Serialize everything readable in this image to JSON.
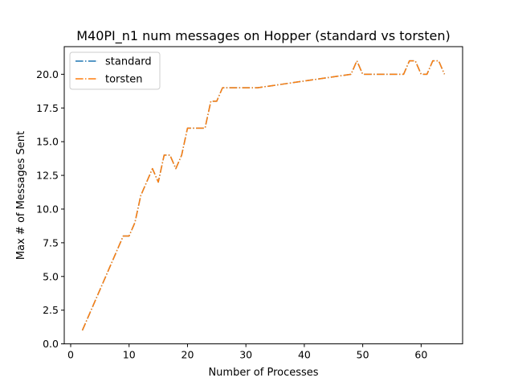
{
  "chart_data": {
    "type": "line",
    "title": "M40PI_n1 num messages on Hopper (standard vs torsten)",
    "xlabel": "Number of Processes",
    "ylabel": "Max # of Messages Sent",
    "xlim": [
      -1.1,
      67.1
    ],
    "ylim": [
      0,
      22.05
    ],
    "xticks": [
      0,
      10,
      20,
      30,
      40,
      50,
      60
    ],
    "yticks": [
      0.0,
      2.5,
      5.0,
      7.5,
      10.0,
      12.5,
      15.0,
      17.5,
      20.0
    ],
    "ytick_labels": [
      "0.0",
      "2.5",
      "5.0",
      "7.5",
      "10.0",
      "12.5",
      "15.0",
      "17.5",
      "20.0"
    ],
    "grid": false,
    "legend_position": "top-left",
    "x": [
      2,
      3,
      4,
      5,
      6,
      7,
      8,
      9,
      10,
      11,
      12,
      13,
      14,
      15,
      16,
      17,
      18,
      19,
      20,
      21,
      22,
      23,
      24,
      25,
      26,
      32,
      48,
      49,
      50,
      56,
      57,
      58,
      59,
      60,
      61,
      62,
      63,
      64
    ],
    "series": [
      {
        "name": "standard",
        "color": "#1f77b4",
        "values": [
          1,
          2,
          3,
          4,
          5,
          6,
          7,
          8,
          8,
          9,
          11,
          12,
          13,
          12,
          14,
          14,
          13,
          14,
          16,
          16,
          16,
          16,
          18,
          18,
          19,
          19,
          20,
          21,
          20,
          20,
          20,
          21,
          21,
          20,
          20,
          21,
          21,
          20
        ]
      },
      {
        "name": "torsten",
        "color": "#ff7f0e",
        "values": [
          1,
          2,
          3,
          4,
          5,
          6,
          7,
          8,
          8,
          9,
          11,
          12,
          13,
          12,
          14,
          14,
          13,
          14,
          16,
          16,
          16,
          16,
          18,
          18,
          19,
          19,
          20,
          21,
          20,
          20,
          20,
          21,
          21,
          20,
          20,
          21,
          21,
          20
        ]
      }
    ]
  }
}
